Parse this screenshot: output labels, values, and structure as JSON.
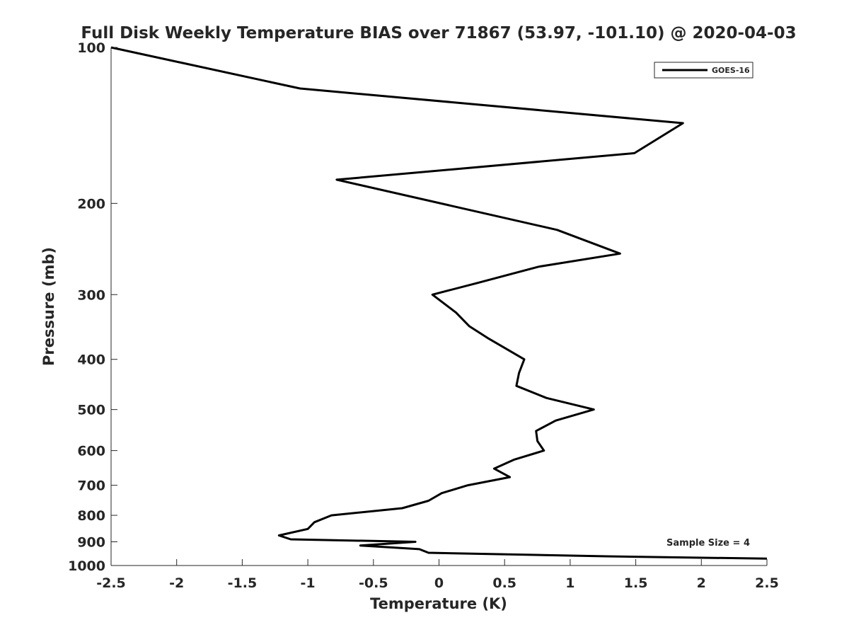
{
  "chart_data": {
    "type": "line",
    "title": "Full Disk Weekly Temperature BIAS over 71867 (53.97, -101.10) @ 2020-04-03",
    "xlabel": "Temperature (K)",
    "ylabel": "Pressure (mb)",
    "xlim": [
      -2.5,
      2.5
    ],
    "ylim": [
      100,
      1000
    ],
    "yscale": "log",
    "y_reversed": true,
    "grid": false,
    "legend_position": "top-right",
    "x_ticks": [
      "-2.5",
      "-2",
      "-1.5",
      "-1",
      "-0.5",
      "0",
      "0.5",
      "1",
      "1.5",
      "2",
      "2.5"
    ],
    "y_ticks": [
      "100",
      "200",
      "300",
      "400",
      "500",
      "600",
      "700",
      "800",
      "900",
      "1000"
    ],
    "annotation": "Sample Size = 4",
    "line_color": "#000000",
    "series": [
      {
        "name": "GOES-16",
        "points": [
          {
            "x": -2.5,
            "p": 100
          },
          {
            "x": -1.06,
            "p": 120
          },
          {
            "x": 1.86,
            "p": 140
          },
          {
            "x": 1.49,
            "p": 160
          },
          {
            "x": -0.78,
            "p": 180
          },
          {
            "x": 0.9,
            "p": 225
          },
          {
            "x": 1.38,
            "p": 250
          },
          {
            "x": 0.76,
            "p": 265
          },
          {
            "x": 0.29,
            "p": 285
          },
          {
            "x": -0.05,
            "p": 300
          },
          {
            "x": 0.13,
            "p": 325
          },
          {
            "x": 0.23,
            "p": 345
          },
          {
            "x": 0.38,
            "p": 365
          },
          {
            "x": 0.65,
            "p": 400
          },
          {
            "x": 0.61,
            "p": 425
          },
          {
            "x": 0.59,
            "p": 450
          },
          {
            "x": 0.82,
            "p": 475
          },
          {
            "x": 1.18,
            "p": 500
          },
          {
            "x": 0.89,
            "p": 525
          },
          {
            "x": 0.74,
            "p": 550
          },
          {
            "x": 0.75,
            "p": 575
          },
          {
            "x": 0.8,
            "p": 600
          },
          {
            "x": 0.57,
            "p": 625
          },
          {
            "x": 0.42,
            "p": 650
          },
          {
            "x": 0.54,
            "p": 675
          },
          {
            "x": 0.22,
            "p": 700
          },
          {
            "x": 0.02,
            "p": 725
          },
          {
            "x": -0.08,
            "p": 750
          },
          {
            "x": -0.28,
            "p": 775
          },
          {
            "x": -0.82,
            "p": 800
          },
          {
            "x": -0.95,
            "p": 825
          },
          {
            "x": -1.0,
            "p": 850
          },
          {
            "x": -1.22,
            "p": 875
          },
          {
            "x": -1.13,
            "p": 890
          },
          {
            "x": -0.18,
            "p": 900
          },
          {
            "x": -0.6,
            "p": 915
          },
          {
            "x": -0.15,
            "p": 930
          },
          {
            "x": -0.08,
            "p": 945
          },
          {
            "x": 1.28,
            "p": 960
          },
          {
            "x": 2.5,
            "p": 970
          }
        ]
      }
    ]
  }
}
